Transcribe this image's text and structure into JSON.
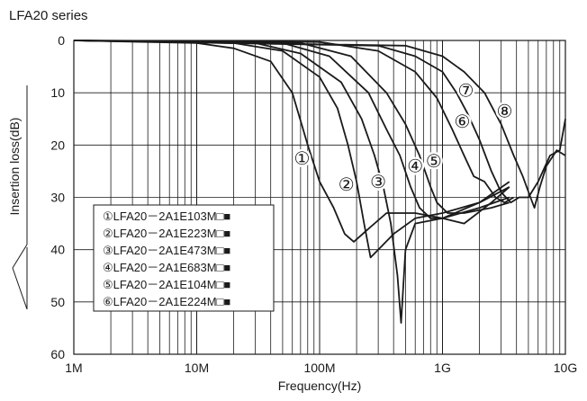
{
  "chart_data": {
    "type": "line",
    "title": "LFA20 series",
    "xlabel": "Frequency(Hz)",
    "ylabel": "Insertion loss(dB)",
    "xscale": "log",
    "x_range_hz": [
      1000000,
      10000000000
    ],
    "y_range_db": [
      0,
      60
    ],
    "y_inverted": true,
    "x_ticks": [
      {
        "value": 1000000,
        "label": "1M"
      },
      {
        "value": 10000000,
        "label": "10M"
      },
      {
        "value": 100000000,
        "label": "100M"
      },
      {
        "value": 1000000000,
        "label": "1G"
      },
      {
        "value": 10000000000,
        "label": "10G"
      }
    ],
    "y_ticks": [
      {
        "value": 0,
        "label": "0"
      },
      {
        "value": 10,
        "label": "10"
      },
      {
        "value": 20,
        "label": "20"
      },
      {
        "value": 30,
        "label": "30"
      },
      {
        "value": 40,
        "label": "40"
      },
      {
        "value": 50,
        "label": "50"
      },
      {
        "value": 60,
        "label": "60"
      }
    ],
    "grid": true,
    "legend_position": "bottom-left",
    "legend_suffix": "□■",
    "series": [
      {
        "marker": "①",
        "name": "LFA20－2A1E103M",
        "points": [
          [
            1000000,
            0
          ],
          [
            10000000,
            0.5
          ],
          [
            20000000,
            1.5
          ],
          [
            40000000,
            4
          ],
          [
            60000000,
            10
          ],
          [
            80000000,
            20
          ],
          [
            100000000,
            27
          ],
          [
            130000000,
            32
          ],
          [
            160000000,
            37
          ],
          [
            190000000,
            38.5
          ],
          [
            250000000,
            36
          ],
          [
            350000000,
            33
          ],
          [
            600000000,
            33
          ],
          [
            1000000000,
            34
          ],
          [
            2000000000,
            32
          ],
          [
            3500000000,
            30
          ]
        ]
      },
      {
        "marker": "②",
        "name": "LFA20－2A1E223M",
        "points": [
          [
            1000000,
            0
          ],
          [
            20000000,
            0.5
          ],
          [
            50000000,
            2
          ],
          [
            100000000,
            7
          ],
          [
            140000000,
            13
          ],
          [
            170000000,
            20
          ],
          [
            200000000,
            27
          ],
          [
            230000000,
            35
          ],
          [
            260000000,
            41.5
          ],
          [
            300000000,
            40
          ],
          [
            400000000,
            37
          ],
          [
            600000000,
            34
          ],
          [
            1000000000,
            33
          ],
          [
            2000000000,
            31
          ],
          [
            3500000000,
            28
          ]
        ]
      },
      {
        "marker": "③",
        "name": "LFA20－2A1E473M",
        "points": [
          [
            1000000,
            0
          ],
          [
            30000000,
            0.5
          ],
          [
            70000000,
            2.5
          ],
          [
            150000000,
            8
          ],
          [
            220000000,
            15
          ],
          [
            280000000,
            22
          ],
          [
            330000000,
            28
          ],
          [
            380000000,
            35
          ],
          [
            430000000,
            45
          ],
          [
            460000000,
            54
          ],
          [
            500000000,
            40
          ],
          [
            600000000,
            35
          ],
          [
            1000000000,
            34
          ],
          [
            2000000000,
            31
          ],
          [
            3500000000,
            27
          ]
        ]
      },
      {
        "marker": "④",
        "name": "LFA20－2A1E683M",
        "points": [
          [
            1000000,
            0
          ],
          [
            50000000,
            0.5
          ],
          [
            120000000,
            3
          ],
          [
            250000000,
            10
          ],
          [
            350000000,
            17
          ],
          [
            450000000,
            22
          ],
          [
            550000000,
            28
          ],
          [
            650000000,
            32
          ],
          [
            800000000,
            34
          ],
          [
            1000000000,
            34
          ],
          [
            1500000000,
            35
          ],
          [
            2500000000,
            31
          ],
          [
            3500000000,
            28
          ]
        ]
      },
      {
        "marker": "⑤",
        "name": "LFA20－2A1E104M",
        "points": [
          [
            1000000,
            0
          ],
          [
            70000000,
            0.5
          ],
          [
            180000000,
            3
          ],
          [
            350000000,
            10
          ],
          [
            500000000,
            16
          ],
          [
            650000000,
            22
          ],
          [
            800000000,
            28
          ],
          [
            900000000,
            31
          ],
          [
            1100000000,
            33
          ],
          [
            1500000000,
            33
          ],
          [
            2500000000,
            32
          ],
          [
            3500000000,
            31
          ]
        ]
      },
      {
        "marker": "⑥",
        "name": "LFA20－2A1E224M",
        "points": [
          [
            1000000,
            0
          ],
          [
            100000000,
            0.3
          ],
          [
            300000000,
            2
          ],
          [
            600000000,
            6
          ],
          [
            900000000,
            11
          ],
          [
            1200000000,
            17
          ],
          [
            1500000000,
            22
          ],
          [
            1800000000,
            26
          ],
          [
            2200000000,
            27
          ],
          [
            2700000000,
            30
          ],
          [
            3200000000,
            31
          ],
          [
            3800000000,
            30
          ]
        ]
      },
      {
        "marker": "⑦",
        "name": "",
        "points": [
          [
            1000000,
            0
          ],
          [
            300000000,
            1
          ],
          [
            600000000,
            3
          ],
          [
            1000000000,
            6
          ],
          [
            1300000000,
            10
          ],
          [
            1600000000,
            14
          ],
          [
            2000000000,
            19
          ],
          [
            2500000000,
            25
          ],
          [
            3000000000,
            29
          ],
          [
            3600000000,
            31
          ],
          [
            4200000000,
            30
          ],
          [
            5000000000,
            30
          ],
          [
            6000000000,
            27
          ],
          [
            7500000000,
            22
          ],
          [
            9000000000,
            21
          ],
          [
            10000000000,
            15
          ]
        ]
      },
      {
        "marker": "⑧",
        "name": "",
        "points": [
          [
            1000000,
            0
          ],
          [
            500000000,
            1
          ],
          [
            1000000000,
            3
          ],
          [
            1500000000,
            6
          ],
          [
            2200000000,
            10
          ],
          [
            3000000000,
            16
          ],
          [
            3800000000,
            22
          ],
          [
            4500000000,
            26
          ],
          [
            5200000000,
            30
          ],
          [
            5600000000,
            32
          ],
          [
            6200000000,
            28
          ],
          [
            7000000000,
            24
          ],
          [
            8500000000,
            21
          ],
          [
            10000000000,
            22
          ]
        ]
      }
    ],
    "curve_labels": [
      {
        "marker": "①",
        "x": 72000000,
        "y": 22.5
      },
      {
        "marker": "②",
        "x": 165000000,
        "y": 27.5
      },
      {
        "marker": "③",
        "x": 300000000,
        "y": 27
      },
      {
        "marker": "④",
        "x": 600000000,
        "y": 24
      },
      {
        "marker": "⑤",
        "x": 850000000,
        "y": 23
      },
      {
        "marker": "⑥",
        "x": 1450000000,
        "y": 15.5
      },
      {
        "marker": "⑦",
        "x": 1550000000,
        "y": 9.5
      },
      {
        "marker": "⑧",
        "x": 3200000000,
        "y": 13.5
      }
    ]
  }
}
